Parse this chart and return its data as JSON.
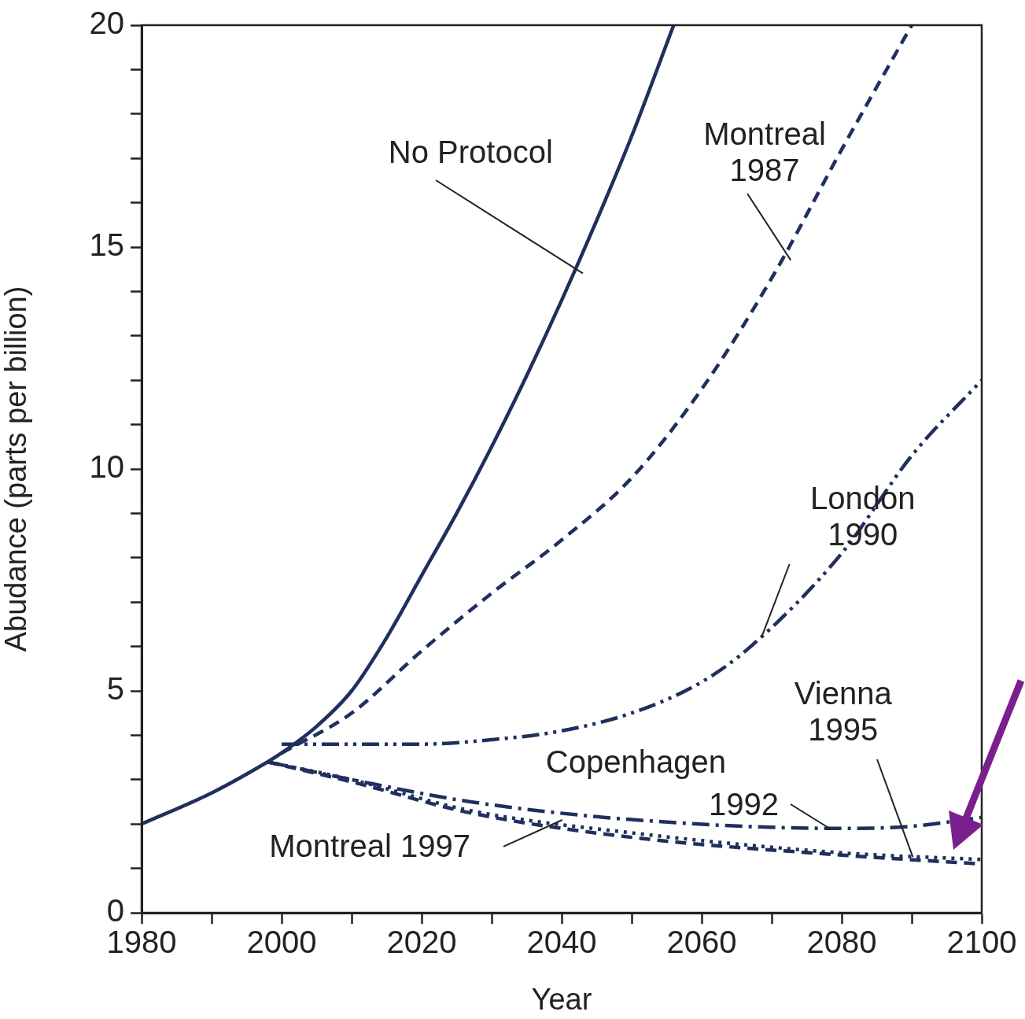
{
  "chart_data": {
    "type": "line",
    "xlabel": "Year",
    "ylabel": "Abudance (parts per billion)",
    "xlim": [
      1980,
      2100
    ],
    "ylim": [
      0,
      20
    ],
    "xticks": [
      1980,
      {
        "value": 1990,
        "label": null
      },
      2000,
      {
        "value": 2010,
        "label": null
      },
      2020,
      {
        "value": 2030,
        "label": null
      },
      2040,
      {
        "value": 2050,
        "label": null
      },
      2060,
      {
        "value": 2070,
        "label": null
      },
      2080,
      {
        "value": 2090,
        "label": null
      },
      2100
    ],
    "yticks": [
      0,
      {
        "value": 1,
        "label": null
      },
      {
        "value": 2,
        "label": null
      },
      {
        "value": 3,
        "label": null
      },
      {
        "value": 4,
        "label": null
      },
      5,
      {
        "value": 6,
        "label": null
      },
      {
        "value": 7,
        "label": null
      },
      {
        "value": 8,
        "label": null
      },
      {
        "value": 9,
        "label": null
      },
      10,
      {
        "value": 11,
        "label": null
      },
      {
        "value": 12,
        "label": null
      },
      {
        "value": 13,
        "label": null
      },
      {
        "value": 14,
        "label": null
      },
      15,
      {
        "value": 16,
        "label": null
      },
      {
        "value": 17,
        "label": null
      },
      {
        "value": 18,
        "label": null
      },
      {
        "value": 19,
        "label": null
      },
      20
    ],
    "grid": false,
    "legend": false,
    "marker": "none",
    "series": [
      {
        "name": "No Protocol",
        "color": "#1f2f5e",
        "line_style": "solid",
        "x": [
          1980,
          1990,
          1998,
          2000,
          2005,
          2010,
          2015,
          2020,
          2025,
          2030,
          2035,
          2040,
          2045,
          2050,
          2056
        ],
        "values": [
          2.0,
          2.7,
          3.4,
          3.6,
          4.2,
          5.0,
          6.2,
          7.6,
          9.0,
          10.5,
          12.1,
          13.8,
          15.6,
          17.5,
          20.0
        ]
      },
      {
        "name": "Montreal 1987",
        "color": "#1f2f5e",
        "line_style": "dashed",
        "x": [
          2000,
          2010,
          2020,
          2030,
          2040,
          2050,
          2060,
          2070,
          2080,
          2090
        ],
        "values": [
          3.6,
          4.5,
          5.9,
          7.2,
          8.4,
          9.8,
          11.8,
          14.3,
          17.2,
          20.0
        ]
      },
      {
        "name": "London 1990",
        "color": "#1f2f5e",
        "line_style": "dashdotdot",
        "x": [
          2000,
          2010,
          2020,
          2030,
          2040,
          2050,
          2060,
          2067,
          2080,
          2090,
          2100
        ],
        "values": [
          3.8,
          3.8,
          3.8,
          3.9,
          4.1,
          4.5,
          5.2,
          6.0,
          8.1,
          10.3,
          12.0
        ]
      },
      {
        "name": "Copenhagen 1992",
        "color": "#1f2f5e",
        "line_style": "dashdot",
        "x": [
          1998,
          2010,
          2027,
          2050,
          2080,
          2090,
          2100
        ],
        "values": [
          3.4,
          3.0,
          2.5,
          2.1,
          1.9,
          1.95,
          2.15
        ]
      },
      {
        "name": "Vienna 1995",
        "color": "#1f2f5e",
        "line_style": "dotted",
        "x": [
          1998,
          2010,
          2027,
          2050,
          2080,
          2100
        ],
        "values": [
          3.4,
          3.0,
          2.3,
          1.8,
          1.35,
          1.2
        ]
      },
      {
        "name": "Montreal 1997",
        "color": "#1f2f5e",
        "line_style": "dashed",
        "x": [
          1998,
          2010,
          2027,
          2050,
          2080,
          2100
        ],
        "values": [
          3.4,
          2.95,
          2.25,
          1.7,
          1.3,
          1.1
        ]
      }
    ]
  }
}
